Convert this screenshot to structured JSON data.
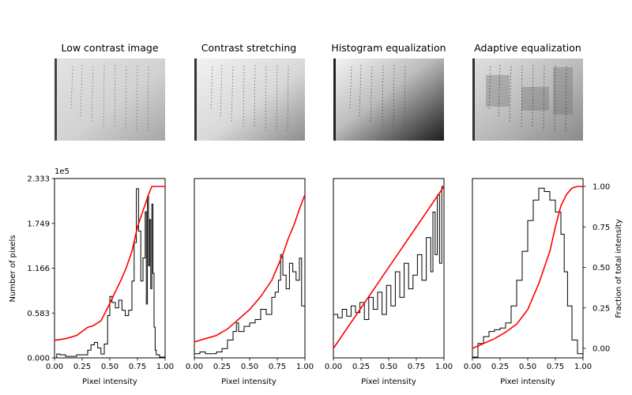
{
  "titles": [
    "Low contrast image",
    "Contrast stretching",
    "Histogram equalization",
    "Adaptive equalization"
  ],
  "colors": {
    "histogram": "#000000",
    "cdf": "#ff0000",
    "frame": "#000000"
  },
  "chart_data": [
    {
      "type": "line",
      "title": "Low contrast image",
      "xlabel": "Pixel intensity",
      "ylabel": "Number of pixels",
      "y_offset_label": "1e5",
      "xlim": [
        0,
        1
      ],
      "ylim": [
        0,
        2.333
      ],
      "x_ticks": [
        "0.00",
        "0.25",
        "0.50",
        "0.75",
        "1.00"
      ],
      "y_ticks": [
        "0.000",
        "0.583",
        "1.166",
        "1.749",
        "2.333"
      ],
      "series": [
        {
          "kind": "histogram",
          "x": [
            0.0,
            0.02,
            0.05,
            0.1,
            0.2,
            0.3,
            0.33,
            0.36,
            0.39,
            0.42,
            0.45,
            0.48,
            0.5,
            0.52,
            0.55,
            0.58,
            0.61,
            0.64,
            0.67,
            0.7,
            0.72,
            0.74,
            0.76,
            0.78,
            0.8,
            0.82,
            0.83,
            0.84,
            0.85,
            0.86,
            0.87,
            0.88,
            0.89,
            0.9,
            0.91,
            0.92,
            0.95,
            1.0
          ],
          "y": [
            0.0,
            0.05,
            0.04,
            0.02,
            0.04,
            0.1,
            0.17,
            0.2,
            0.13,
            0.05,
            0.18,
            0.55,
            0.8,
            0.72,
            0.65,
            0.75,
            0.62,
            0.55,
            0.62,
            1.0,
            1.5,
            2.2,
            1.65,
            1.0,
            1.3,
            1.9,
            0.7,
            2.1,
            1.2,
            1.8,
            0.9,
            2.0,
            1.1,
            0.4,
            0.1,
            0.04,
            0.01,
            0.0
          ]
        },
        {
          "kind": "cdf",
          "x": [
            0.0,
            0.1,
            0.2,
            0.3,
            0.35,
            0.42,
            0.48,
            0.55,
            0.6,
            0.65,
            0.7,
            0.75,
            0.8,
            0.85,
            0.88,
            0.9,
            1.0
          ],
          "y": [
            0.05,
            0.06,
            0.08,
            0.13,
            0.14,
            0.17,
            0.25,
            0.35,
            0.42,
            0.5,
            0.6,
            0.75,
            0.85,
            0.95,
            1.0,
            1.0,
            1.0
          ]
        }
      ]
    },
    {
      "type": "line",
      "title": "Contrast stretching",
      "xlabel": "Pixel intensity",
      "xlim": [
        0,
        1
      ],
      "x_ticks": [
        "0.00",
        "0.25",
        "0.50",
        "0.75",
        "1.00"
      ],
      "series": [
        {
          "kind": "histogram",
          "x": [
            0.0,
            0.05,
            0.1,
            0.15,
            0.2,
            0.25,
            0.3,
            0.35,
            0.38,
            0.4,
            0.45,
            0.5,
            0.55,
            0.6,
            0.65,
            0.7,
            0.73,
            0.76,
            0.78,
            0.8,
            0.83,
            0.86,
            0.89,
            0.92,
            0.95,
            0.97,
            1.0
          ],
          "y": [
            0.02,
            0.03,
            0.02,
            0.02,
            0.03,
            0.05,
            0.1,
            0.15,
            0.2,
            0.15,
            0.18,
            0.2,
            0.22,
            0.28,
            0.25,
            0.35,
            0.38,
            0.45,
            0.6,
            0.48,
            0.4,
            0.55,
            0.5,
            0.45,
            0.58,
            0.3,
            0.5
          ]
        },
        {
          "kind": "cdf",
          "x": [
            0.0,
            0.1,
            0.2,
            0.3,
            0.35,
            0.4,
            0.5,
            0.6,
            0.7,
            0.75,
            0.8,
            0.85,
            0.9,
            0.95,
            1.0
          ],
          "y": [
            0.04,
            0.06,
            0.08,
            0.12,
            0.15,
            0.18,
            0.24,
            0.32,
            0.42,
            0.5,
            0.58,
            0.68,
            0.76,
            0.86,
            0.95
          ]
        }
      ]
    },
    {
      "type": "line",
      "title": "Histogram equalization",
      "xlabel": "Pixel intensity",
      "xlim": [
        0,
        1
      ],
      "x_ticks": [
        "0.00",
        "0.25",
        "0.50",
        "0.75",
        "1.00"
      ],
      "series": [
        {
          "kind": "histogram",
          "x": [
            0.0,
            0.04,
            0.08,
            0.12,
            0.16,
            0.2,
            0.24,
            0.28,
            0.32,
            0.36,
            0.4,
            0.44,
            0.48,
            0.52,
            0.56,
            0.6,
            0.64,
            0.68,
            0.72,
            0.76,
            0.8,
            0.84,
            0.88,
            0.9,
            0.92,
            0.94,
            0.96,
            0.98,
            1.0
          ],
          "y": [
            0.25,
            0.23,
            0.28,
            0.24,
            0.3,
            0.26,
            0.32,
            0.22,
            0.35,
            0.28,
            0.38,
            0.25,
            0.42,
            0.3,
            0.5,
            0.35,
            0.55,
            0.4,
            0.48,
            0.6,
            0.45,
            0.7,
            0.5,
            0.85,
            0.6,
            0.95,
            0.55,
            1.0,
            0.7
          ]
        },
        {
          "kind": "cdf",
          "x": [
            0.0,
            1.0
          ],
          "y": [
            0.0,
            1.0
          ]
        }
      ]
    },
    {
      "type": "line",
      "title": "Adaptive equalization",
      "xlabel": "Pixel intensity",
      "ylabel_right": "Fraction of total intensity",
      "xlim": [
        0,
        1
      ],
      "ylim": [
        0,
        1
      ],
      "x_ticks": [
        "0.00",
        "0.25",
        "0.50",
        "0.75",
        "1.00"
      ],
      "y_ticks_right": [
        "0.00",
        "0.25",
        "0.50",
        "0.75",
        "1.00"
      ],
      "series": [
        {
          "kind": "histogram",
          "x": [
            0.0,
            0.05,
            0.1,
            0.15,
            0.2,
            0.25,
            0.3,
            0.35,
            0.4,
            0.45,
            0.5,
            0.55,
            0.6,
            0.65,
            0.7,
            0.75,
            0.8,
            0.83,
            0.86,
            0.9,
            0.95,
            1.0
          ],
          "y": [
            0.0,
            0.08,
            0.12,
            0.15,
            0.16,
            0.17,
            0.2,
            0.3,
            0.45,
            0.62,
            0.8,
            0.92,
            0.99,
            0.97,
            0.92,
            0.85,
            0.72,
            0.5,
            0.3,
            0.1,
            0.02,
            0.0
          ]
        },
        {
          "kind": "cdf",
          "x": [
            0.0,
            0.1,
            0.2,
            0.3,
            0.4,
            0.5,
            0.6,
            0.7,
            0.75,
            0.8,
            0.85,
            0.9,
            0.95,
            1.0
          ],
          "y": [
            0.0,
            0.03,
            0.06,
            0.1,
            0.15,
            0.24,
            0.4,
            0.6,
            0.75,
            0.88,
            0.95,
            0.99,
            1.0,
            1.0
          ]
        }
      ]
    }
  ]
}
